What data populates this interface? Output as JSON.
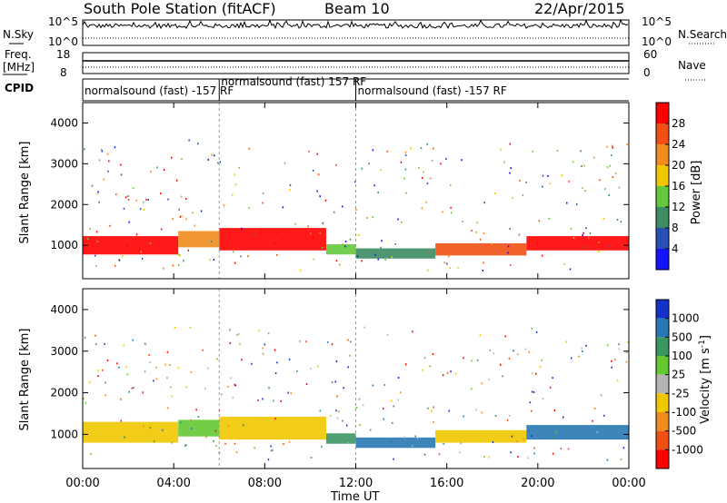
{
  "header": {
    "title": "South Pole Station (fitACF)",
    "beam": "Beam 10",
    "date": "22/Apr/2015"
  },
  "labels": {
    "nsky": "N.Sky",
    "nsearch": "N.Search",
    "freq_line1": "Freq.",
    "freq_line2": "[MHz]",
    "nave": "Nave",
    "cpid": "CPID",
    "sky_tick_top": "10^5",
    "sky_tick_bottom": "10^0",
    "search_tick_top": "10^5",
    "search_tick_bottom": "10^0",
    "freq_tick_top": "18",
    "freq_tick_bottom": "8",
    "nave_tick_top": "60",
    "nave_tick_bottom": "0",
    "xlabel": "Time UT"
  },
  "cpid_segments": [
    {
      "text": "normalsound (fast) -157 RF",
      "start_hour": 0.0
    },
    {
      "text": "normalsound (fast) 157 RF",
      "start_hour": 6.0
    },
    {
      "text": "normalsound (fast) -157 RF",
      "start_hour": 12.0
    }
  ],
  "chart_data": [
    {
      "type": "heatmap",
      "title": "",
      "xlabel": "Time UT",
      "ylabel": "Slant Range [km]",
      "x_ticks": [
        "00:00",
        "04:00",
        "08:00",
        "12:00",
        "16:00",
        "20:00",
        "00:00"
      ],
      "x_range_hours": [
        0,
        24
      ],
      "y_ticks": [
        1000,
        2000,
        3000,
        4000
      ],
      "ylim": [
        180,
        4500
      ],
      "colorbar": {
        "label": "Power [dB]",
        "ticks": [
          4,
          8,
          12,
          16,
          20,
          24,
          28
        ],
        "range": [
          0,
          32
        ],
        "colors": [
          "#1414ff",
          "#2850b4",
          "#3c8c64",
          "#64c83c",
          "#f0c800",
          "#f08c1e",
          "#f05014",
          "#ff0000"
        ]
      },
      "echo_bands": [
        {
          "t0": 0.0,
          "t1": 4.2,
          "center_km": 1000,
          "width_km": 450,
          "level": 28
        },
        {
          "t0": 4.2,
          "t1": 6.0,
          "center_km": 1150,
          "width_km": 400,
          "level": 20
        },
        {
          "t0": 6.0,
          "t1": 10.7,
          "center_km": 1150,
          "width_km": 550,
          "level": 28
        },
        {
          "t0": 10.7,
          "t1": 12.0,
          "center_km": 900,
          "width_km": 250,
          "level": 14
        },
        {
          "t0": 12.0,
          "t1": 15.5,
          "center_km": 800,
          "width_km": 250,
          "level": 8
        },
        {
          "t0": 15.5,
          "t1": 19.5,
          "center_km": 900,
          "width_km": 300,
          "level": 24
        },
        {
          "t0": 19.5,
          "t1": 24.0,
          "center_km": 1050,
          "width_km": 350,
          "level": 28
        }
      ]
    },
    {
      "type": "heatmap",
      "title": "",
      "xlabel": "Time UT",
      "ylabel": "Slant Range [km]",
      "x_ticks": [
        "00:00",
        "04:00",
        "08:00",
        "12:00",
        "16:00",
        "20:00",
        "00:00"
      ],
      "x_range_hours": [
        0,
        24
      ],
      "y_ticks": [
        1000,
        2000,
        3000,
        4000
      ],
      "ylim": [
        180,
        4500
      ],
      "colorbar": {
        "label": "Velocity [m s^-1]",
        "ticks": [
          "1000",
          "500",
          "100",
          "25",
          "-25",
          "-100",
          "-500",
          "-1000"
        ],
        "colors": [
          "#1432c8",
          "#2878b4",
          "#3c9664",
          "#64c832",
          "#b4b4b4",
          "#f0c800",
          "#f08c1e",
          "#f05014",
          "#ff0000"
        ]
      },
      "echo_bands": [
        {
          "t0": 0.0,
          "t1": 4.2,
          "center_km": 1050,
          "width_km": 500,
          "level": -100
        },
        {
          "t0": 4.2,
          "t1": 6.0,
          "center_km": 1150,
          "width_km": 400,
          "level": 25
        },
        {
          "t0": 6.0,
          "t1": 10.7,
          "center_km": 1150,
          "width_km": 550,
          "level": -100
        },
        {
          "t0": 10.7,
          "t1": 12.0,
          "center_km": 900,
          "width_km": 250,
          "level": 100
        },
        {
          "t0": 12.0,
          "t1": 15.5,
          "center_km": 800,
          "width_km": 250,
          "level": 500
        },
        {
          "t0": 15.5,
          "t1": 19.5,
          "center_km": 950,
          "width_km": 300,
          "level": -100
        },
        {
          "t0": 19.5,
          "t1": 24.0,
          "center_km": 1050,
          "width_km": 350,
          "level": 500
        }
      ]
    }
  ]
}
